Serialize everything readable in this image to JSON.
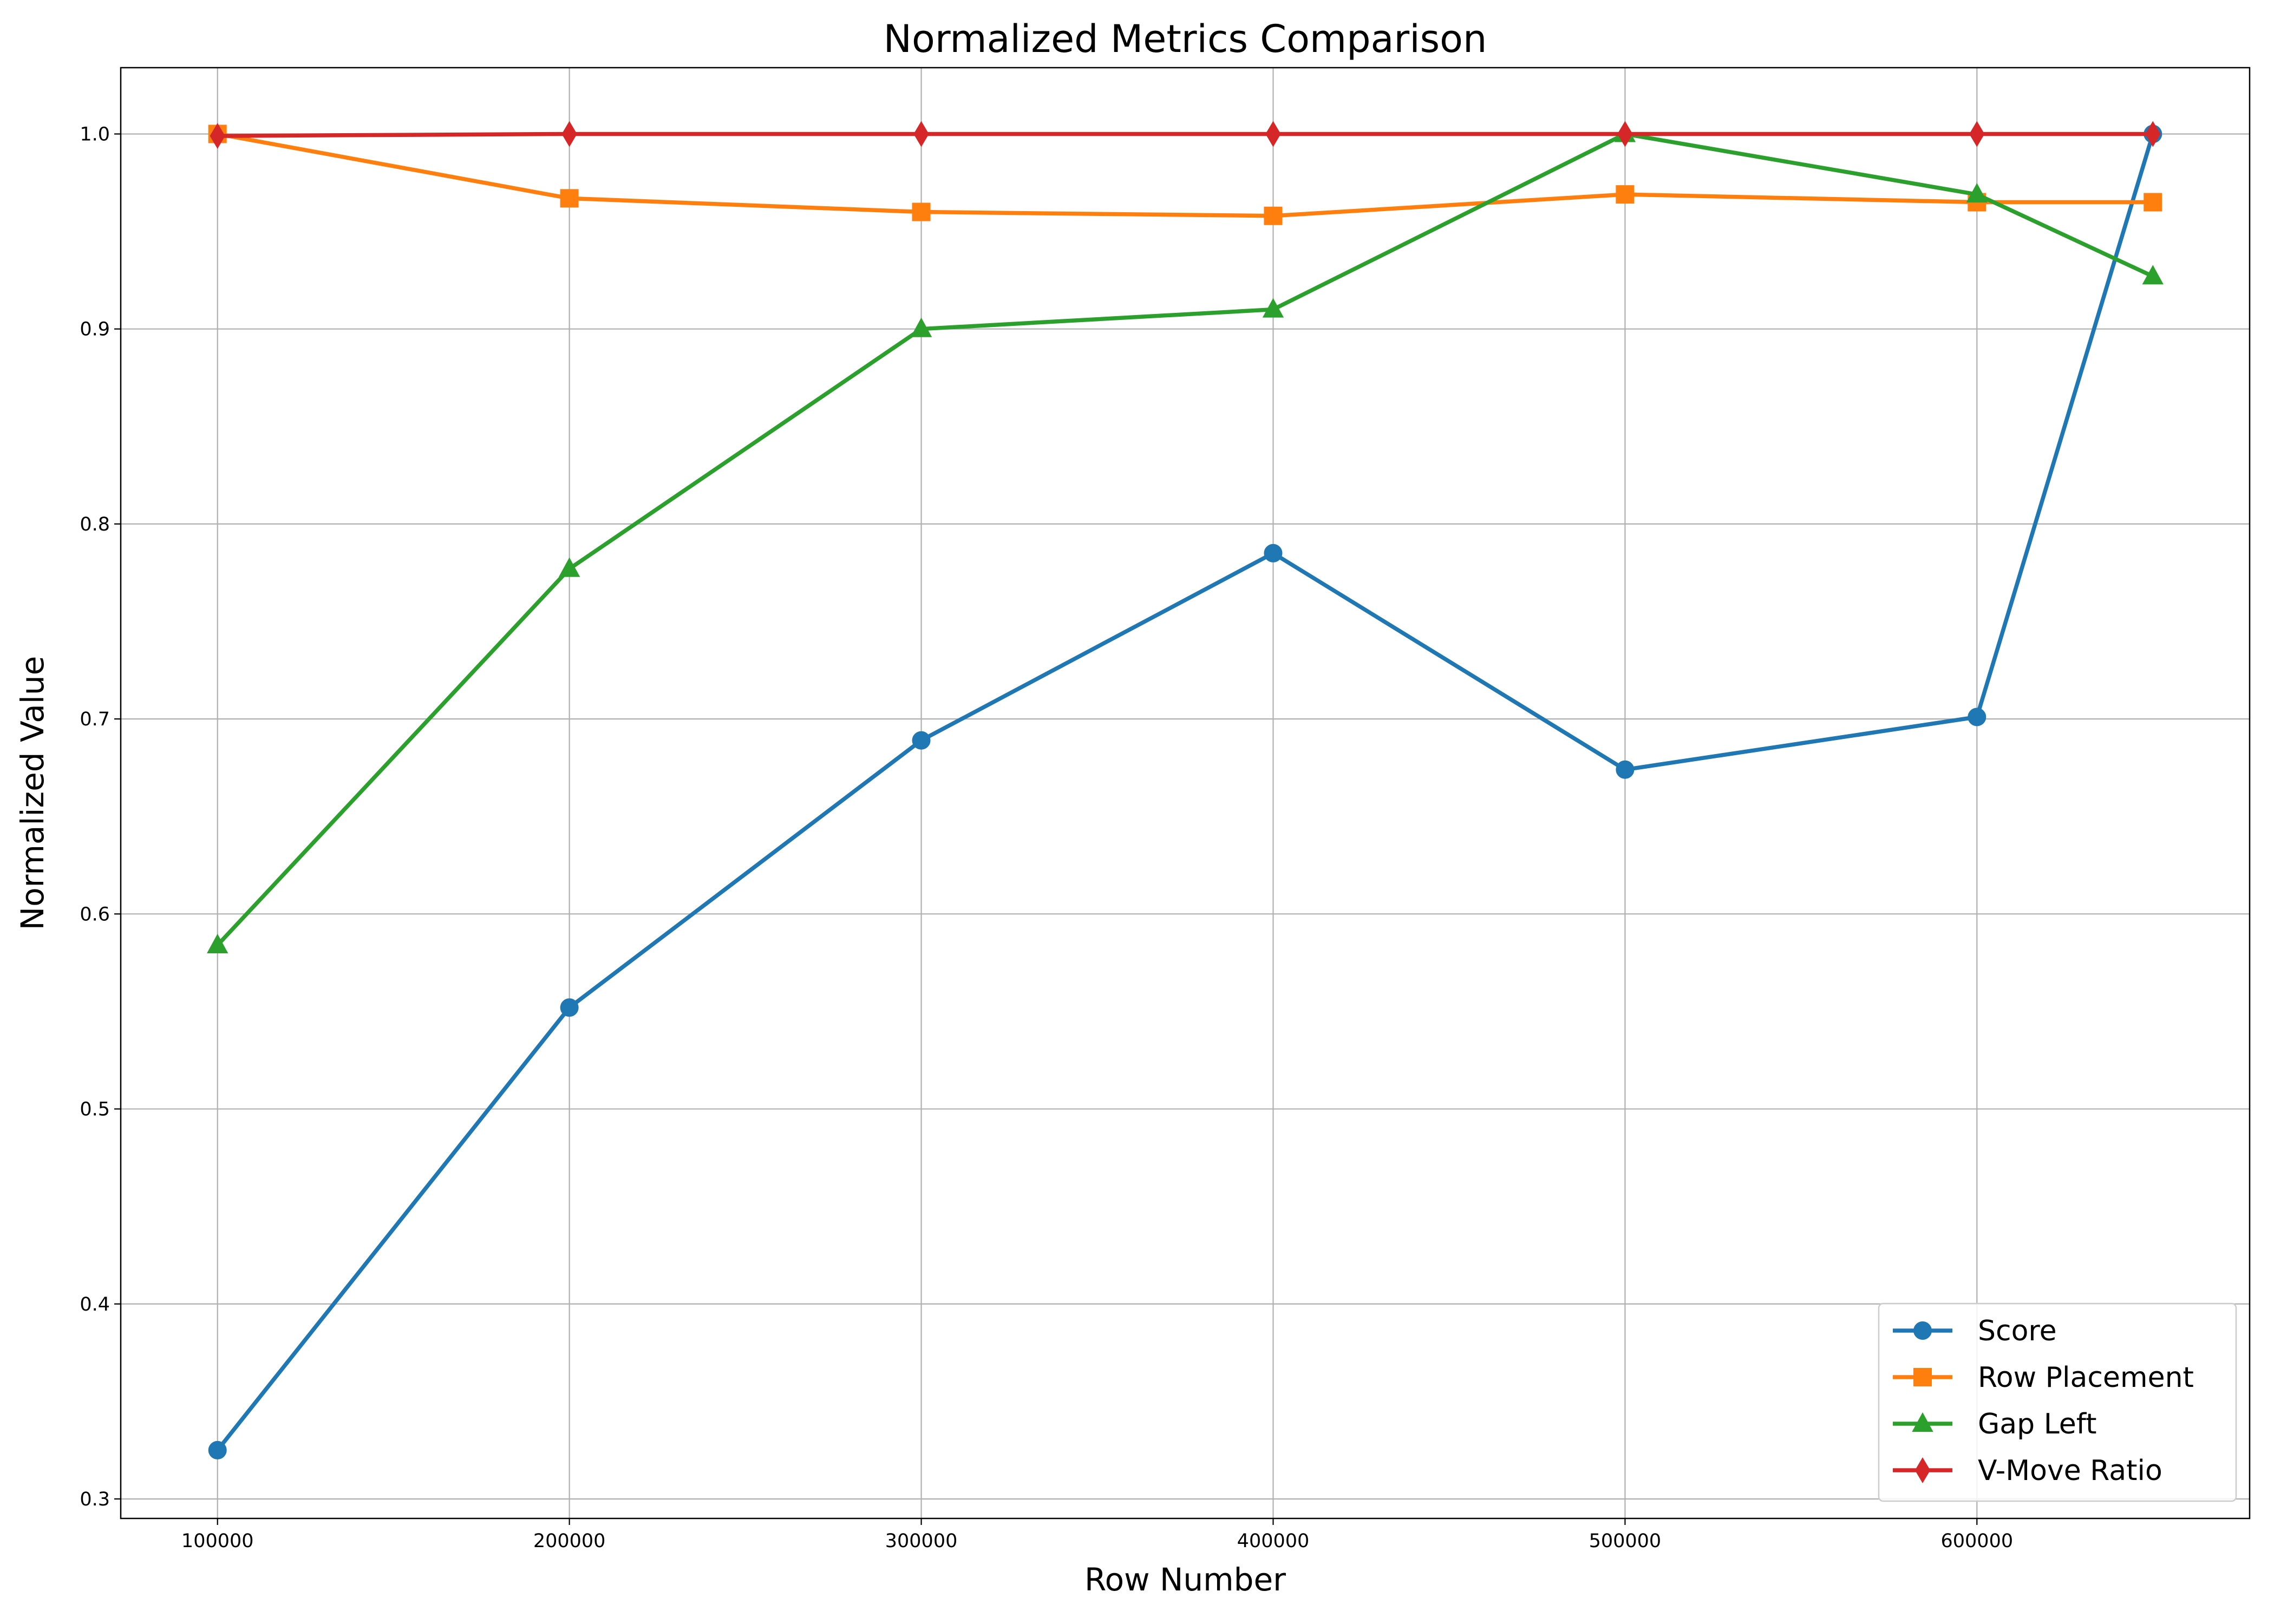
{
  "chart_data": {
    "type": "line",
    "title": "Normalized Metrics Comparison",
    "xlabel": "Row Number",
    "ylabel": "Normalized Value",
    "x": [
      100000,
      200000,
      300000,
      400000,
      500000,
      600000,
      650000
    ],
    "xticks": [
      100000,
      200000,
      300000,
      400000,
      500000,
      600000
    ],
    "xtick_labels": [
      "100000",
      "200000",
      "300000",
      "400000",
      "500000",
      "600000"
    ],
    "yticks": [
      0.3,
      0.4,
      0.5,
      0.6,
      0.7,
      0.8,
      0.9,
      1.0
    ],
    "ytick_labels": [
      "0.3",
      "0.4",
      "0.5",
      "0.6",
      "0.7",
      "0.8",
      "0.9",
      "1.0"
    ],
    "xlim": [
      72500,
      677500
    ],
    "ylim": [
      0.29,
      1.034
    ],
    "grid": true,
    "legend_position": "lower-right",
    "series": [
      {
        "name": "Score",
        "color": "#1f77b4",
        "marker": "circle",
        "values": [
          0.325,
          0.552,
          0.689,
          0.785,
          0.674,
          0.701,
          1.0
        ]
      },
      {
        "name": "Row Placement",
        "color": "#ff7f0e",
        "marker": "square",
        "values": [
          1.0,
          0.967,
          0.96,
          0.958,
          0.969,
          0.965,
          0.965
        ]
      },
      {
        "name": "Gap Left",
        "color": "#2ca02c",
        "marker": "triangle",
        "values": [
          0.584,
          0.777,
          0.9,
          0.91,
          1.0,
          0.969,
          0.927
        ]
      },
      {
        "name": "V-Move Ratio",
        "color": "#d62728",
        "marker": "diamond",
        "values": [
          0.999,
          1.0,
          1.0,
          1.0,
          1.0,
          1.0,
          1.0
        ]
      }
    ]
  }
}
